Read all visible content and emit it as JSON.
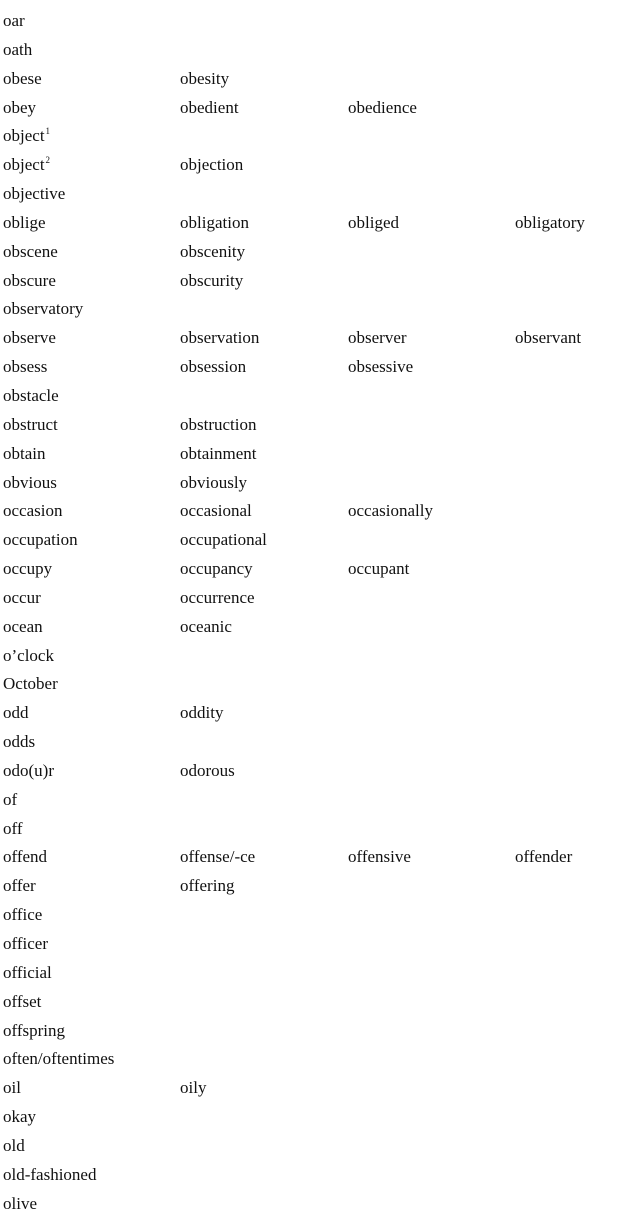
{
  "rows": [
    {
      "words": [
        "oar"
      ]
    },
    {
      "words": [
        "oath"
      ]
    },
    {
      "words": [
        "obese",
        "obesity"
      ]
    },
    {
      "words": [
        "obey",
        "obedient",
        "obedience"
      ]
    },
    {
      "words": [
        "object"
      ],
      "sup": "1"
    },
    {
      "words": [
        "object",
        "objection"
      ],
      "sup": "2"
    },
    {
      "words": [
        "objective"
      ]
    },
    {
      "words": [
        "oblige",
        "obligation",
        "obliged",
        "obligatory"
      ]
    },
    {
      "words": [
        "obscene",
        "obscenity"
      ]
    },
    {
      "words": [
        "obscure",
        "obscurity"
      ]
    },
    {
      "words": [
        "observatory"
      ]
    },
    {
      "words": [
        "observe",
        "observation",
        "observer",
        "observant"
      ]
    },
    {
      "words": [
        "obsess",
        "obsession",
        "obsessive"
      ]
    },
    {
      "words": [
        "obstacle"
      ]
    },
    {
      "words": [
        "obstruct",
        "obstruction"
      ]
    },
    {
      "words": [
        "obtain",
        "obtainment"
      ]
    },
    {
      "words": [
        "obvious",
        "obviously"
      ]
    },
    {
      "words": [
        "occasion",
        "occasional",
        "occasionally"
      ]
    },
    {
      "words": [
        "occupation",
        "occupational"
      ]
    },
    {
      "words": [
        "occupy",
        "occupancy",
        "occupant"
      ]
    },
    {
      "words": [
        "occur",
        "occurrence"
      ]
    },
    {
      "words": [
        "ocean",
        "oceanic"
      ]
    },
    {
      "words": [
        "o’clock"
      ]
    },
    {
      "words": [
        "October"
      ]
    },
    {
      "words": [
        "odd",
        "oddity"
      ]
    },
    {
      "words": [
        "odds"
      ]
    },
    {
      "words": [
        "odo(u)r",
        "odorous"
      ]
    },
    {
      "words": [
        "of"
      ]
    },
    {
      "words": [
        "off"
      ]
    },
    {
      "words": [
        "offend",
        "offense/-ce",
        "offensive",
        "offender"
      ]
    },
    {
      "words": [
        "offer",
        "offering"
      ]
    },
    {
      "words": [
        "office"
      ]
    },
    {
      "words": [
        "officer"
      ]
    },
    {
      "words": [
        "official"
      ]
    },
    {
      "words": [
        "offset"
      ]
    },
    {
      "words": [
        "offspring"
      ]
    },
    {
      "words": [
        "often/oftentimes"
      ]
    },
    {
      "words": [
        "oil",
        "oily"
      ]
    },
    {
      "words": [
        "okay"
      ]
    },
    {
      "words": [
        "old"
      ]
    },
    {
      "words": [
        "old-fashioned"
      ]
    },
    {
      "words": [
        "olive"
      ]
    }
  ]
}
